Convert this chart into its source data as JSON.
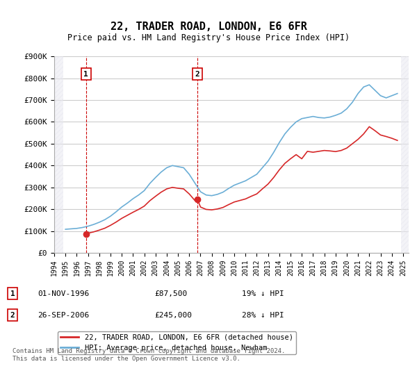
{
  "title": "22, TRADER ROAD, LONDON, E6 6FR",
  "subtitle": "Price paid vs. HM Land Registry's House Price Index (HPI)",
  "ylim": [
    0,
    900000
  ],
  "yticks": [
    0,
    100000,
    200000,
    300000,
    400000,
    500000,
    600000,
    700000,
    800000,
    900000
  ],
  "ytick_labels": [
    "£0",
    "£100K",
    "£200K",
    "£300K",
    "£400K",
    "£500K",
    "£600K",
    "£700K",
    "£800K",
    "£900K"
  ],
  "hpi_color": "#6baed6",
  "price_color": "#d62728",
  "marker_color": "#d62728",
  "annotation_box_color": "#d62728",
  "legend_box": true,
  "transaction1": {
    "label": "1",
    "date": "01-NOV-1996",
    "price": "£87,500",
    "hpi": "19% ↓ HPI",
    "x_val": 1996.83
  },
  "transaction2": {
    "label": "2",
    "date": "26-SEP-2006",
    "price": "£245,000",
    "hpi": "28% ↓ HPI",
    "x_val": 2006.73
  },
  "footer": "Contains HM Land Registry data © Crown copyright and database right 2024.\nThis data is licensed under the Open Government Licence v3.0.",
  "hpi_line": {
    "x": [
      1995,
      1995.5,
      1996,
      1996.5,
      1997,
      1997.5,
      1998,
      1998.5,
      1999,
      1999.5,
      2000,
      2000.5,
      2001,
      2001.5,
      2002,
      2002.5,
      2003,
      2003.5,
      2004,
      2004.5,
      2005,
      2005.5,
      2006,
      2006.5,
      2007,
      2007.5,
      2008,
      2008.5,
      2009,
      2009.5,
      2010,
      2010.5,
      2011,
      2011.5,
      2012,
      2012.5,
      2013,
      2013.5,
      2014,
      2014.5,
      2015,
      2015.5,
      2016,
      2016.5,
      2017,
      2017.5,
      2018,
      2018.5,
      2019,
      2019.5,
      2020,
      2020.5,
      2021,
      2021.5,
      2022,
      2022.5,
      2023,
      2023.5,
      2024,
      2024.5
    ],
    "y": [
      108000,
      110000,
      112000,
      116000,
      122000,
      130000,
      140000,
      152000,
      168000,
      188000,
      210000,
      228000,
      248000,
      265000,
      285000,
      318000,
      345000,
      370000,
      390000,
      400000,
      395000,
      390000,
      360000,
      320000,
      280000,
      265000,
      262000,
      268000,
      278000,
      295000,
      310000,
      320000,
      330000,
      345000,
      360000,
      390000,
      420000,
      460000,
      505000,
      545000,
      575000,
      600000,
      615000,
      620000,
      625000,
      620000,
      618000,
      622000,
      630000,
      640000,
      660000,
      690000,
      730000,
      760000,
      770000,
      745000,
      720000,
      710000,
      720000,
      730000
    ]
  },
  "price_line": {
    "x": [
      1996.83,
      1997,
      1997.5,
      1998,
      1998.5,
      1999,
      1999.5,
      2000,
      2000.5,
      2001,
      2001.5,
      2002,
      2002.5,
      2003,
      2003.5,
      2004,
      2004.5,
      2005,
      2005.5,
      2006,
      2006.5,
      2006.73,
      2007,
      2007.5,
      2008,
      2008.5,
      2009,
      2009.5,
      2010,
      2010.5,
      2011,
      2011.5,
      2012,
      2012.5,
      2013,
      2013.5,
      2014,
      2014.5,
      2015,
      2015.5,
      2016,
      2016.5,
      2017,
      2017.5,
      2018,
      2018.5,
      2019,
      2019.5,
      2020,
      2020.5,
      2021,
      2021.5,
      2022,
      2022.5,
      2023,
      2023.5,
      2024,
      2024.5
    ],
    "y": [
      87500,
      90000,
      96000,
      104000,
      113000,
      126000,
      141000,
      158000,
      172000,
      186000,
      199000,
      214000,
      239000,
      259000,
      278000,
      293000,
      300000,
      296000,
      293000,
      270000,
      240000,
      245000,
      210000,
      199000,
      197000,
      201000,
      208000,
      221000,
      233000,
      240000,
      247000,
      259000,
      270000,
      293000,
      315000,
      345000,
      380000,
      410000,
      431000,
      450000,
      431000,
      465000,
      461000,
      465000,
      469000,
      467000,
      464000,
      469000,
      480000,
      500000,
      520000,
      545000,
      578000,
      560000,
      540000,
      533000,
      525000,
      515000
    ]
  },
  "xlim": [
    1994,
    2025.5
  ],
  "xticks": [
    1994,
    1995,
    1996,
    1997,
    1998,
    1999,
    2000,
    2001,
    2002,
    2003,
    2004,
    2005,
    2006,
    2007,
    2008,
    2009,
    2010,
    2011,
    2012,
    2013,
    2014,
    2015,
    2016,
    2017,
    2018,
    2019,
    2020,
    2021,
    2022,
    2023,
    2024,
    2025
  ],
  "grid_color": "#cccccc",
  "bg_chart": "#ffffff",
  "bg_hatch_color": "#e8e8e8"
}
